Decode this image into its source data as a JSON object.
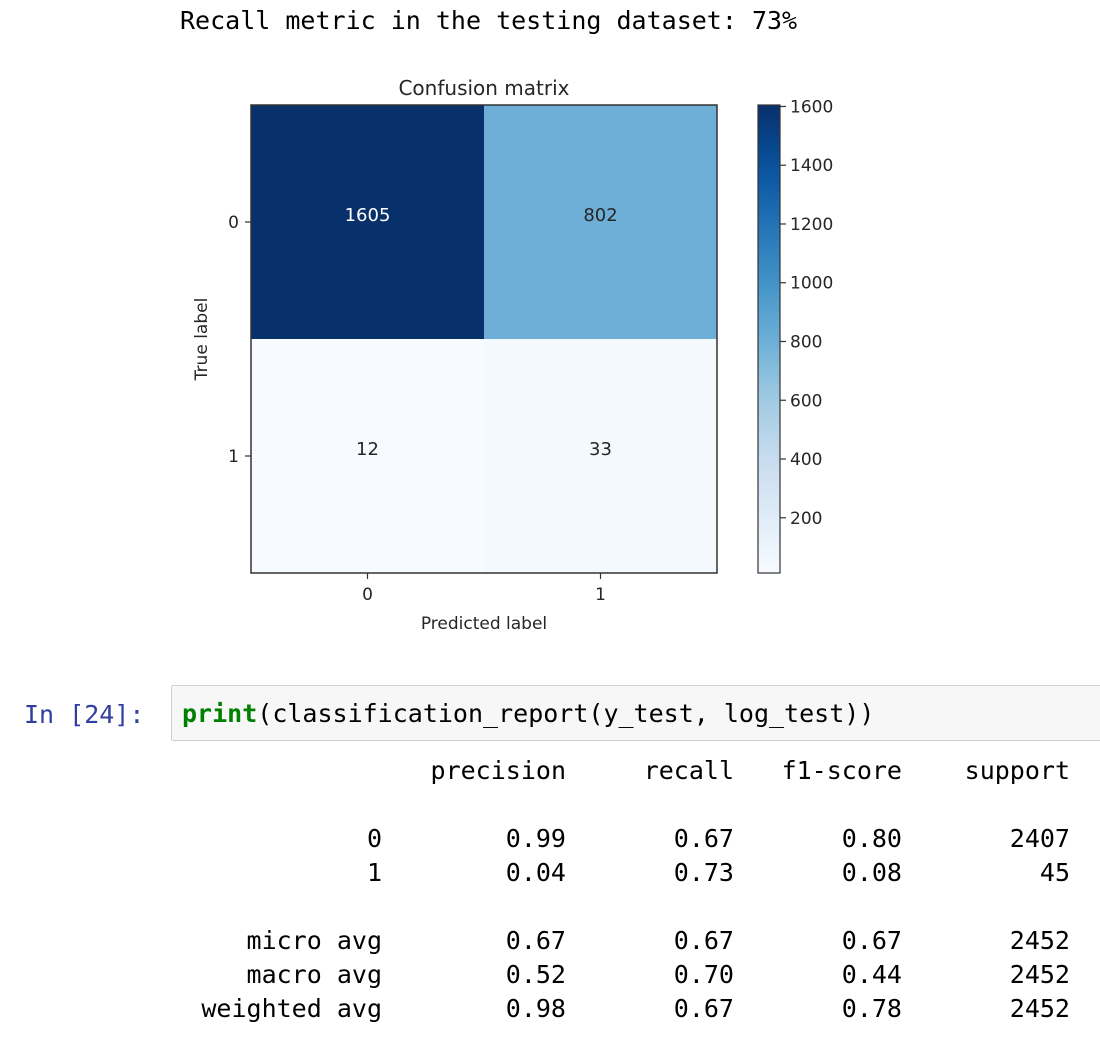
{
  "output": {
    "recall_line": "Recall metric in the testing dataset: 73%"
  },
  "chart_data": {
    "type": "heatmap",
    "title": "Confusion matrix",
    "xlabel": "Predicted label",
    "ylabel": "True label",
    "x_tick_labels": [
      "0",
      "1"
    ],
    "y_tick_labels": [
      "0",
      "1"
    ],
    "matrix": [
      [
        1605,
        802
      ],
      [
        12,
        33
      ]
    ],
    "colormap": "Blues",
    "colorbar": {
      "min": 12,
      "max": 1605,
      "ticks": [
        200,
        400,
        600,
        800,
        1000,
        1200,
        1400,
        1600
      ]
    }
  },
  "cell": {
    "prompt": "In [24]:",
    "code_keyword": "print",
    "code_rest": "(classification_report(y_test, log_test))"
  },
  "report": {
    "headers": [
      "",
      "precision",
      "recall",
      "f1-score",
      "support"
    ],
    "rows": [
      [
        "0",
        "0.99",
        "0.67",
        "0.80",
        "2407"
      ],
      [
        "1",
        "0.04",
        "0.73",
        "0.08",
        "45"
      ],
      [
        "",
        "",
        "",
        "",
        ""
      ],
      [
        "micro avg",
        "0.67",
        "0.67",
        "0.67",
        "2452"
      ],
      [
        "macro avg",
        "0.52",
        "0.70",
        "0.44",
        "2452"
      ],
      [
        "weighted avg",
        "0.98",
        "0.67",
        "0.78",
        "2452"
      ]
    ]
  }
}
